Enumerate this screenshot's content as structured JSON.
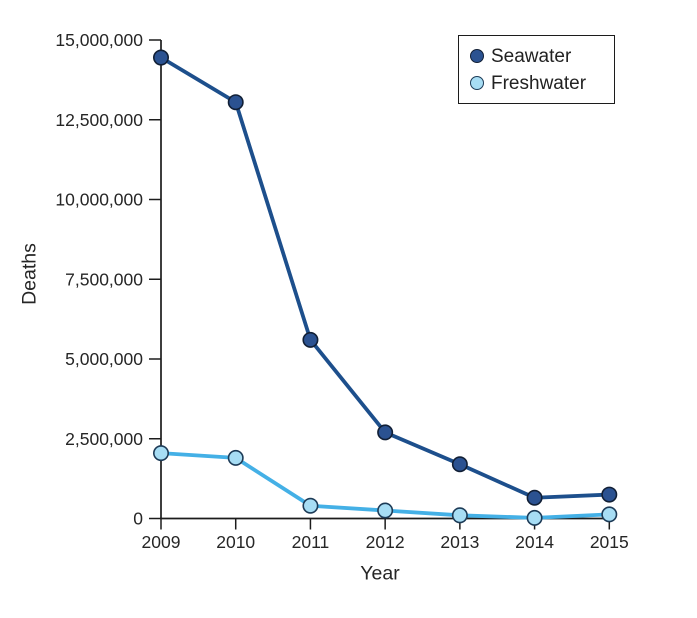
{
  "figure": {
    "background_color": "#ffffff",
    "text_color": "#262626",
    "axis_color": "#1c1c1c"
  },
  "chart_data": {
    "type": "line",
    "xlabel": "Year",
    "ylabel": "Deaths",
    "x": [
      2009,
      2010,
      2011,
      2012,
      2013,
      2014,
      2015
    ],
    "series": [
      {
        "name": "Seawater",
        "values": [
          14450000,
          13050000,
          5600000,
          2700000,
          1700000,
          650000,
          750000
        ],
        "line_color": "#1d4f8c",
        "marker_fill": "#2b5291",
        "marker_stroke": "#111f35"
      },
      {
        "name": "Freshwater",
        "values": [
          2050000,
          1900000,
          400000,
          250000,
          100000,
          20000,
          130000
        ],
        "line_color": "#44b0e6",
        "marker_fill": "#a7ddf4",
        "marker_stroke": "#1d3b57"
      }
    ],
    "ylim": [
      0,
      15000000
    ],
    "yticks": [
      0,
      2500000,
      5000000,
      7500000,
      10000000,
      12500000,
      15000000
    ],
    "ytick_labels": [
      "0",
      "2,500,000",
      "5,000,000",
      "7,500,000",
      "10,000,000",
      "12,500,000",
      "15,000,000"
    ],
    "xtick_labels": [
      "2009",
      "2010",
      "2011",
      "2012",
      "2013",
      "2014",
      "2015"
    ],
    "grid": false,
    "legend": {
      "position": "top-right",
      "entries": [
        "Seawater",
        "Freshwater"
      ]
    }
  }
}
